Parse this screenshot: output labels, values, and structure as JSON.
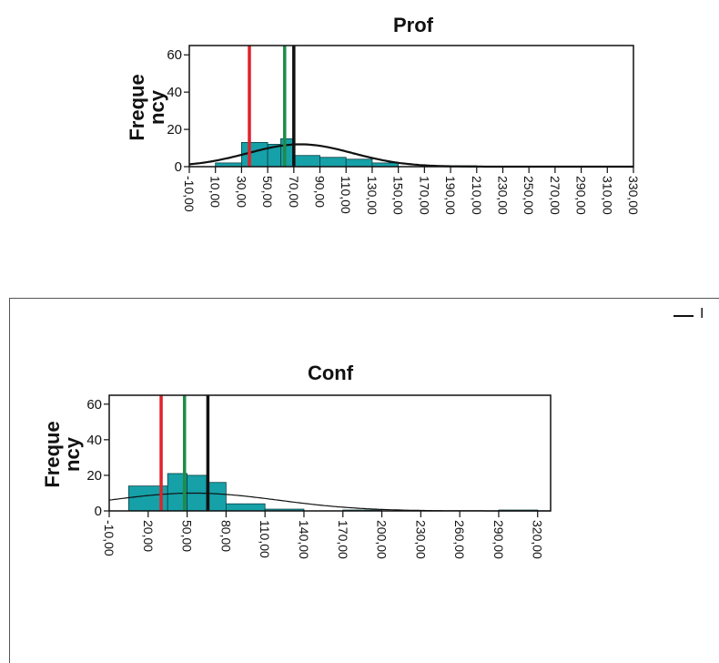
{
  "charts": [
    {
      "id": "prof",
      "type": "bar",
      "title": "Prof",
      "ylabel": "Freque ncy",
      "ylim": [
        0,
        65
      ],
      "yticks": [
        "0",
        "20",
        "40",
        "60"
      ],
      "xlim": [
        -10,
        330
      ],
      "xticks": [
        "-10,00",
        "10,00",
        "30,00",
        "50,00",
        "70,00",
        "90,00",
        "110,00",
        "130,00",
        "150,00",
        "170,00",
        "190,00",
        "210,00",
        "230,00",
        "250,00",
        "270,00",
        "290,00",
        "310,00",
        "330,00"
      ],
      "bins": [
        {
          "start": 10,
          "end": 30,
          "value": 2
        },
        {
          "start": 30,
          "end": 50,
          "value": 13
        },
        {
          "start": 50,
          "end": 60,
          "value": 12
        },
        {
          "start": 60,
          "end": 70,
          "value": 15
        },
        {
          "start": 70,
          "end": 90,
          "value": 6
        },
        {
          "start": 90,
          "end": 110,
          "value": 5
        },
        {
          "start": 110,
          "end": 130,
          "value": 4
        },
        {
          "start": 130,
          "end": 150,
          "value": 2
        },
        {
          "start": 190,
          "end": 210,
          "value": 0.5
        }
      ],
      "normal_curve": {
        "mean": 75,
        "sd": 40,
        "peak": 12
      },
      "vlines": [
        {
          "x": 36,
          "color": "#e0232b"
        },
        {
          "x": 63,
          "color": "#1e8c4a"
        },
        {
          "x": 70,
          "color": "#111111"
        }
      ],
      "bar_color": "#16a0a8"
    },
    {
      "id": "conf",
      "type": "bar",
      "title": "Conf",
      "ylabel": "Freque ncy",
      "ylim": [
        0,
        65
      ],
      "yticks": [
        "0",
        "20",
        "40",
        "60"
      ],
      "xlim": [
        -10,
        330
      ],
      "xticks": [
        "-10,00",
        "20,00",
        "50,00",
        "80,00",
        "110,00",
        "140,00",
        "170,00",
        "200,00",
        "230,00",
        "260,00",
        "290,00",
        "320,00"
      ],
      "bins": [
        {
          "start": 5,
          "end": 35,
          "value": 14
        },
        {
          "start": 35,
          "end": 50,
          "value": 21
        },
        {
          "start": 50,
          "end": 65,
          "value": 20
        },
        {
          "start": 65,
          "end": 80,
          "value": 16
        },
        {
          "start": 80,
          "end": 110,
          "value": 4
        },
        {
          "start": 110,
          "end": 140,
          "value": 1
        },
        {
          "start": 170,
          "end": 200,
          "value": 0.5
        },
        {
          "start": 290,
          "end": 320,
          "value": 0.5
        }
      ],
      "normal_curve": {
        "mean": 55,
        "sd": 65,
        "peak": 10
      },
      "vlines": [
        {
          "x": 30,
          "color": "#e0232b"
        },
        {
          "x": 48,
          "color": "#1e8c4a"
        },
        {
          "x": 66,
          "color": "#111111"
        }
      ],
      "bar_color": "#16a0a8"
    }
  ],
  "legend": {
    "label": "I"
  }
}
